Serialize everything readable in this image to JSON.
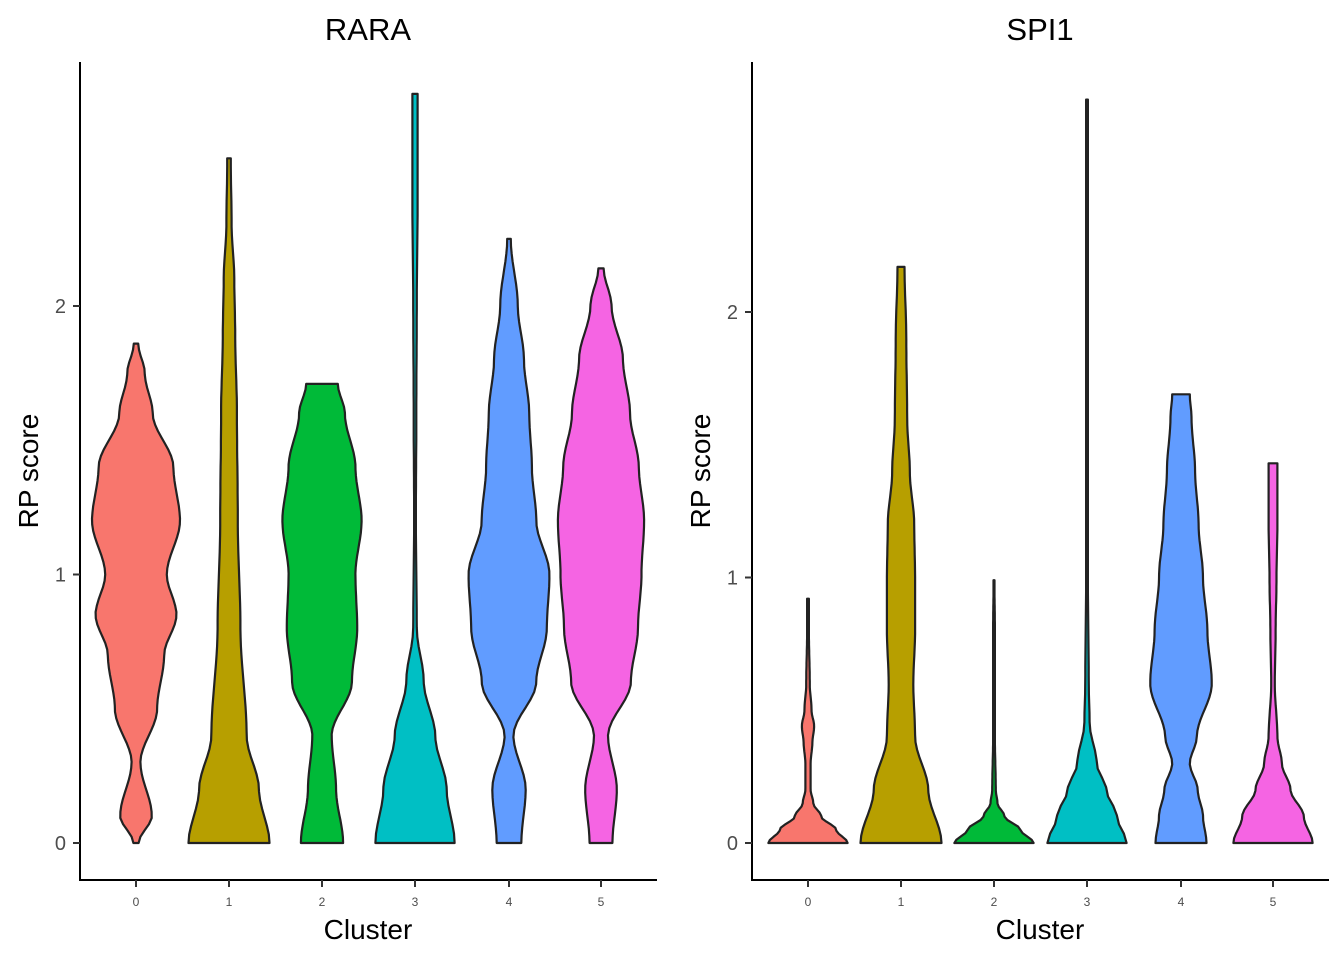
{
  "chart_data": [
    {
      "type": "violin",
      "title": "RARA",
      "xlabel": "Cluster",
      "ylabel": "RP score",
      "categories": [
        "0",
        "1",
        "2",
        "3",
        "4",
        "5"
      ],
      "yticks": [
        "0",
        "1",
        "2"
      ],
      "ylim": [
        -0.13,
        2.9
      ],
      "grid": false,
      "legend": "none",
      "series": [
        {
          "cluster": "0",
          "color": "#F8766D",
          "max": 1.86,
          "profile": [
            [
              0,
              0.06
            ],
            [
              0.1,
              0.36
            ],
            [
              0.3,
              0.1
            ],
            [
              0.5,
              0.48
            ],
            [
              0.7,
              0.64
            ],
            [
              0.85,
              0.92
            ],
            [
              1.0,
              0.7
            ],
            [
              1.2,
              1.0
            ],
            [
              1.4,
              0.85
            ],
            [
              1.6,
              0.38
            ],
            [
              1.75,
              0.2
            ],
            [
              1.86,
              0.05
            ]
          ]
        },
        {
          "cluster": "1",
          "color": "#B79F00",
          "max": 2.55,
          "profile": [
            [
              0,
              0.92
            ],
            [
              0.2,
              0.68
            ],
            [
              0.4,
              0.4
            ],
            [
              0.8,
              0.26
            ],
            [
              1.2,
              0.2
            ],
            [
              1.6,
              0.18
            ],
            [
              1.9,
              0.14
            ],
            [
              2.1,
              0.12
            ],
            [
              2.3,
              0.06
            ],
            [
              2.55,
              0.04
            ]
          ]
        },
        {
          "cluster": "2",
          "color": "#00BA38",
          "max": 1.71,
          "profile": [
            [
              0,
              0.48
            ],
            [
              0.2,
              0.32
            ],
            [
              0.4,
              0.22
            ],
            [
              0.6,
              0.68
            ],
            [
              0.8,
              0.8
            ],
            [
              1.0,
              0.76
            ],
            [
              1.2,
              0.9
            ],
            [
              1.4,
              0.76
            ],
            [
              1.6,
              0.52
            ],
            [
              1.71,
              0.36
            ]
          ]
        },
        {
          "cluster": "3",
          "color": "#00BFC4",
          "max": 2.79,
          "profile": [
            [
              0,
              0.9
            ],
            [
              0.2,
              0.72
            ],
            [
              0.4,
              0.46
            ],
            [
              0.6,
              0.2
            ],
            [
              0.8,
              0.04
            ],
            [
              1.2,
              0.02
            ],
            [
              1.6,
              0.03
            ],
            [
              2.0,
              0.04
            ],
            [
              2.4,
              0.06
            ],
            [
              2.79,
              0.06
            ]
          ]
        },
        {
          "cluster": "4",
          "color": "#619CFF",
          "max": 2.25,
          "profile": [
            [
              0,
              0.28
            ],
            [
              0.2,
              0.38
            ],
            [
              0.4,
              0.1
            ],
            [
              0.6,
              0.62
            ],
            [
              0.8,
              0.86
            ],
            [
              1.0,
              0.92
            ],
            [
              1.2,
              0.62
            ],
            [
              1.4,
              0.52
            ],
            [
              1.6,
              0.46
            ],
            [
              1.8,
              0.34
            ],
            [
              2.0,
              0.2
            ],
            [
              2.25,
              0.04
            ]
          ]
        },
        {
          "cluster": "5",
          "color": "#F564E3",
          "max": 2.14,
          "profile": [
            [
              0,
              0.26
            ],
            [
              0.2,
              0.36
            ],
            [
              0.4,
              0.16
            ],
            [
              0.6,
              0.68
            ],
            [
              0.8,
              0.84
            ],
            [
              1.0,
              0.92
            ],
            [
              1.2,
              0.98
            ],
            [
              1.4,
              0.86
            ],
            [
              1.6,
              0.66
            ],
            [
              1.8,
              0.5
            ],
            [
              2.0,
              0.24
            ],
            [
              2.14,
              0.06
            ]
          ]
        }
      ]
    },
    {
      "type": "violin",
      "title": "SPI1",
      "xlabel": "Cluster",
      "ylabel": "RP score",
      "categories": [
        "0",
        "1",
        "2",
        "3",
        "4",
        "5"
      ],
      "yticks": [
        "0",
        "1",
        "2"
      ],
      "ylim": [
        -0.13,
        2.9
      ],
      "grid": false,
      "legend": "none",
      "series": [
        {
          "cluster": "0",
          "color": "#F8766D",
          "max": 0.92,
          "profile": [
            [
              0,
              0.9
            ],
            [
              0.05,
              0.64
            ],
            [
              0.1,
              0.3
            ],
            [
              0.15,
              0.12
            ],
            [
              0.2,
              0.06
            ],
            [
              0.3,
              0.06
            ],
            [
              0.38,
              0.1
            ],
            [
              0.44,
              0.14
            ],
            [
              0.5,
              0.08
            ],
            [
              0.6,
              0.04
            ],
            [
              0.8,
              0.02
            ],
            [
              0.92,
              0.02
            ]
          ]
        },
        {
          "cluster": "1",
          "color": "#B79F00",
          "max": 2.17,
          "profile": [
            [
              0,
              0.92
            ],
            [
              0.2,
              0.62
            ],
            [
              0.4,
              0.32
            ],
            [
              0.6,
              0.28
            ],
            [
              0.8,
              0.32
            ],
            [
              1.0,
              0.32
            ],
            [
              1.2,
              0.3
            ],
            [
              1.4,
              0.2
            ],
            [
              1.6,
              0.14
            ],
            [
              1.9,
              0.12
            ],
            [
              2.17,
              0.08
            ]
          ]
        },
        {
          "cluster": "2",
          "color": "#00BA38",
          "max": 0.99,
          "profile": [
            [
              0,
              0.9
            ],
            [
              0.05,
              0.6
            ],
            [
              0.1,
              0.24
            ],
            [
              0.15,
              0.08
            ],
            [
              0.2,
              0.04
            ],
            [
              0.4,
              0.02
            ],
            [
              0.6,
              0.02
            ],
            [
              0.8,
              0.02
            ],
            [
              0.99,
              0.01
            ]
          ]
        },
        {
          "cluster": "3",
          "color": "#00BFC4",
          "max": 2.8,
          "profile": [
            [
              0,
              0.9
            ],
            [
              0.1,
              0.68
            ],
            [
              0.2,
              0.44
            ],
            [
              0.3,
              0.22
            ],
            [
              0.45,
              0.06
            ],
            [
              0.6,
              0.04
            ],
            [
              1.0,
              0.02
            ],
            [
              1.5,
              0.02
            ],
            [
              2.0,
              0.02
            ],
            [
              2.5,
              0.02
            ],
            [
              2.8,
              0.02
            ]
          ]
        },
        {
          "cluster": "4",
          "color": "#619CFF",
          "max": 1.69,
          "profile": [
            [
              0,
              0.58
            ],
            [
              0.1,
              0.5
            ],
            [
              0.2,
              0.38
            ],
            [
              0.3,
              0.2
            ],
            [
              0.4,
              0.36
            ],
            [
              0.6,
              0.7
            ],
            [
              0.8,
              0.6
            ],
            [
              1.0,
              0.5
            ],
            [
              1.2,
              0.4
            ],
            [
              1.4,
              0.32
            ],
            [
              1.6,
              0.24
            ],
            [
              1.69,
              0.2
            ]
          ]
        },
        {
          "cluster": "5",
          "color": "#F564E3",
          "max": 1.43,
          "profile": [
            [
              0,
              0.9
            ],
            [
              0.1,
              0.7
            ],
            [
              0.2,
              0.4
            ],
            [
              0.3,
              0.2
            ],
            [
              0.4,
              0.1
            ],
            [
              0.6,
              0.04
            ],
            [
              0.8,
              0.06
            ],
            [
              1.0,
              0.08
            ],
            [
              1.2,
              0.1
            ],
            [
              1.43,
              0.1
            ]
          ]
        }
      ]
    }
  ]
}
